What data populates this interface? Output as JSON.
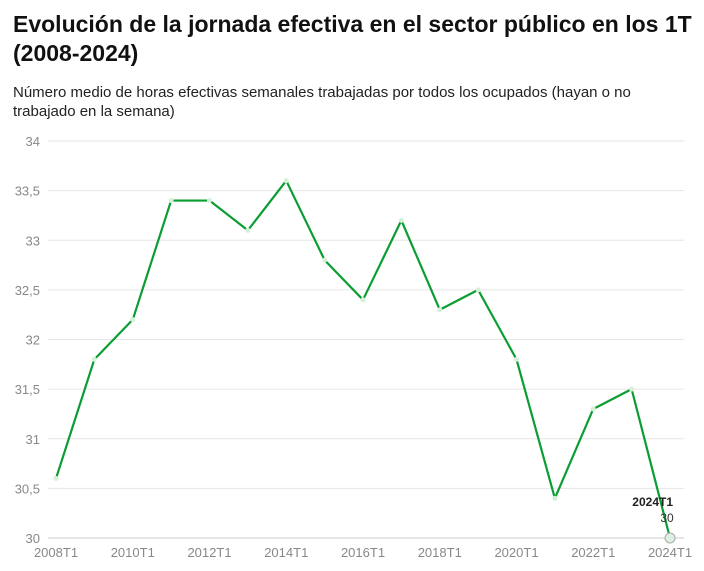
{
  "title": "Evolución de la jornada efectiva en el sector público en los 1T (2008-2024)",
  "subtitle": "Número medio de horas efectivas semanales trabajadas por todos los ocupados (hayan o no trabajado en la semana)",
  "chart_data": {
    "type": "line",
    "title": "Evolución de la jornada efectiva en el sector público en los 1T (2008-2024)",
    "xlabel": "",
    "ylabel": "",
    "x": [
      "2008T1",
      "2009T1",
      "2010T1",
      "2011T1",
      "2012T1",
      "2013T1",
      "2014T1",
      "2015T1",
      "2016T1",
      "2017T1",
      "2018T1",
      "2019T1",
      "2020T1",
      "2021T1",
      "2022T1",
      "2023T1",
      "2024T1"
    ],
    "values": [
      30.6,
      31.8,
      32.2,
      33.4,
      33.4,
      33.1,
      33.6,
      32.8,
      32.4,
      33.2,
      32.3,
      32.5,
      31.8,
      30.4,
      31.3,
      31.5,
      30.0
    ],
    "ylim": [
      30,
      34
    ],
    "yticks": [
      "30",
      "30,5",
      "31",
      "31,5",
      "32",
      "32,5",
      "33",
      "33,5",
      "34"
    ],
    "xticks": [
      "2008T1",
      "2010T1",
      "2012T1",
      "2014T1",
      "2016T1",
      "2018T1",
      "2020T1",
      "2022T1",
      "2024T1"
    ],
    "grid": true,
    "color": "#0a9e32",
    "annotation": {
      "label": "2024T1",
      "value": "30"
    }
  }
}
